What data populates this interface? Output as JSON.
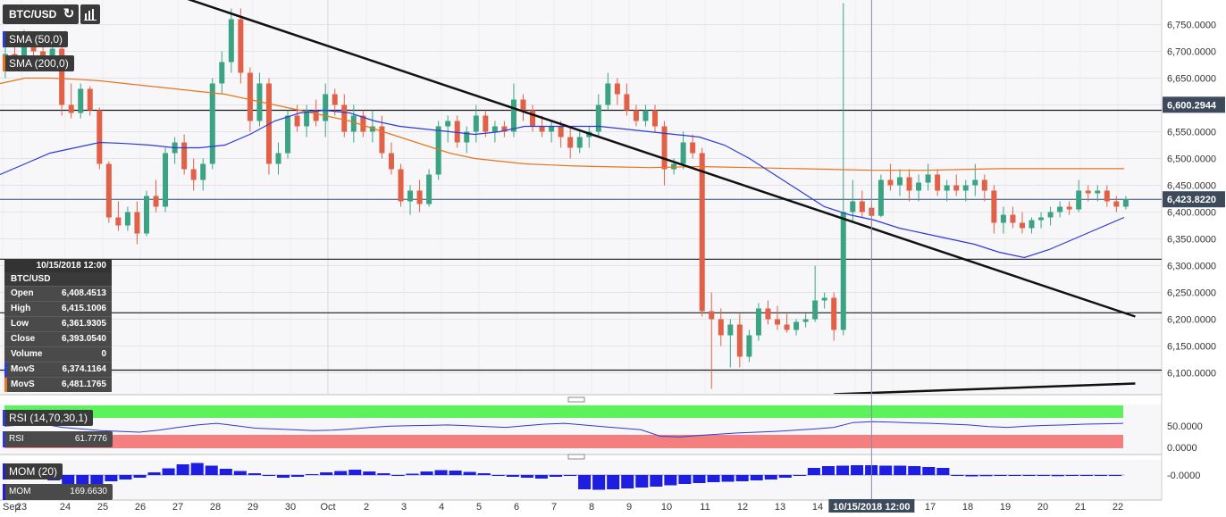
{
  "toolbar": {
    "symbol": "BTC/USD",
    "refresh_icon": "refresh-icon",
    "indicators_icon": "bar-chart-icon"
  },
  "overlays": {
    "sma50": {
      "label": "SMA (50,0)",
      "color": "#2b3bd6"
    },
    "sma200": {
      "label": "SMA (200,0)",
      "color": "#e8741e"
    }
  },
  "ohlc_panel": {
    "date": "10/15/2018 12:00",
    "symbol": "BTC/USD",
    "rows": [
      {
        "k": "Open",
        "v": "6,408.4513"
      },
      {
        "k": "High",
        "v": "6,415.1006"
      },
      {
        "k": "Low",
        "v": "6,361.9305"
      },
      {
        "k": "Close",
        "v": "6,393.0540"
      },
      {
        "k": "Volume",
        "v": "0"
      },
      {
        "k": "MovS",
        "v": "6,374.1164",
        "color": "#2b3bd6"
      },
      {
        "k": "MovS",
        "v": "6,481.1765",
        "color": "#e8741e"
      }
    ]
  },
  "rsi": {
    "label": "RSI (14,70,30,1)",
    "value_label": "RSI",
    "value": "61.7776",
    "ticks": [
      "50.0000",
      "0.0000"
    ],
    "colors": {
      "overbought": "#5cf25c",
      "oversold": "#f57f7f",
      "line": "#2b3bd6"
    }
  },
  "momentum": {
    "label": "MOM (20)",
    "value_label": "MOM",
    "value": "169.6630",
    "ticks": [
      "-0.0000"
    ],
    "color": "#1e1ee0"
  },
  "crosshair_label": "10/15/2018 12:00",
  "chart_data": {
    "type": "candlestick",
    "title": "BTC/USD",
    "ylim": [
      6060,
      6800
    ],
    "y_ticks": [
      "6,100.0000",
      "6,150.0000",
      "6,200.0000",
      "6,250.0000",
      "6,300.0000",
      "6,350.0000",
      "6,400.0000",
      "6,450.0000",
      "6,500.0000",
      "6,550.0000",
      "6,600.0000",
      "6,650.0000",
      "6,700.0000",
      "6,750.0000"
    ],
    "x_ticks": [
      "Sep",
      "23",
      "24",
      "25",
      "26",
      "27",
      "28",
      "29",
      "30",
      "Oct",
      "2",
      "3",
      "4",
      "5",
      "6",
      "7",
      "8",
      "9",
      "10",
      "11",
      "12",
      "13",
      "14",
      "15",
      "16",
      "17",
      "18",
      "19",
      "20",
      "21",
      "22"
    ],
    "price_labels": [
      {
        "value": 6600.2944,
        "text": "6,600.2944"
      },
      {
        "value": 6423.822,
        "text": "6,423.8220"
      }
    ],
    "horizontal_lines": [
      6590,
      6312,
      6212,
      6105
    ],
    "trendlines": [
      {
        "from": [
          "Sep 23 00:00",
          6900
        ],
        "to": [
          "Oct 22 12:00",
          6205
        ]
      },
      {
        "from": [
          "Oct 14 12:00",
          6060
        ],
        "to": [
          "Oct 22 12:00",
          6080
        ]
      }
    ],
    "candles": [
      {
        "d": "Sep 22 12:00",
        "o": 6680,
        "h": 6710,
        "l": 6650,
        "c": 6695
      },
      {
        "d": "Sep 22 18:00",
        "o": 6695,
        "h": 6725,
        "l": 6675,
        "c": 6690
      },
      {
        "d": "Sep 23 00:00",
        "o": 6690,
        "h": 6740,
        "l": 6670,
        "c": 6720
      },
      {
        "d": "Sep 23 06:00",
        "o": 6720,
        "h": 6735,
        "l": 6690,
        "c": 6700
      },
      {
        "d": "Sep 23 12:00",
        "o": 6700,
        "h": 6720,
        "l": 6680,
        "c": 6690
      },
      {
        "d": "Sep 23 18:00",
        "o": 6690,
        "h": 6720,
        "l": 6670,
        "c": 6705
      },
      {
        "d": "Sep 24 00:00",
        "o": 6705,
        "h": 6710,
        "l": 6580,
        "c": 6600
      },
      {
        "d": "Sep 24 06:00",
        "o": 6600,
        "h": 6640,
        "l": 6575,
        "c": 6585
      },
      {
        "d": "Sep 24 12:00",
        "o": 6585,
        "h": 6640,
        "l": 6575,
        "c": 6630
      },
      {
        "d": "Sep 24 18:00",
        "o": 6630,
        "h": 6635,
        "l": 6580,
        "c": 6590
      },
      {
        "d": "Sep 25 00:00",
        "o": 6590,
        "h": 6595,
        "l": 6480,
        "c": 6490
      },
      {
        "d": "Sep 25 06:00",
        "o": 6490,
        "h": 6495,
        "l": 6380,
        "c": 6390
      },
      {
        "d": "Sep 25 12:00",
        "o": 6390,
        "h": 6420,
        "l": 6365,
        "c": 6375
      },
      {
        "d": "Sep 25 18:00",
        "o": 6375,
        "h": 6410,
        "l": 6365,
        "c": 6400
      },
      {
        "d": "Sep 26 00:00",
        "o": 6400,
        "h": 6420,
        "l": 6340,
        "c": 6360
      },
      {
        "d": "Sep 26 06:00",
        "o": 6360,
        "h": 6440,
        "l": 6355,
        "c": 6430
      },
      {
        "d": "Sep 26 12:00",
        "o": 6430,
        "h": 6460,
        "l": 6400,
        "c": 6410
      },
      {
        "d": "Sep 26 18:00",
        "o": 6410,
        "h": 6520,
        "l": 6400,
        "c": 6510
      },
      {
        "d": "Sep 27 00:00",
        "o": 6510,
        "h": 6540,
        "l": 6490,
        "c": 6530
      },
      {
        "d": "Sep 27 06:00",
        "o": 6530,
        "h": 6545,
        "l": 6470,
        "c": 6480
      },
      {
        "d": "Sep 27 12:00",
        "o": 6480,
        "h": 6500,
        "l": 6440,
        "c": 6460
      },
      {
        "d": "Sep 27 18:00",
        "o": 6460,
        "h": 6500,
        "l": 6440,
        "c": 6490
      },
      {
        "d": "Sep 28 00:00",
        "o": 6490,
        "h": 6650,
        "l": 6480,
        "c": 6640
      },
      {
        "d": "Sep 28 06:00",
        "o": 6640,
        "h": 6700,
        "l": 6620,
        "c": 6680
      },
      {
        "d": "Sep 28 12:00",
        "o": 6680,
        "h": 6780,
        "l": 6660,
        "c": 6760
      },
      {
        "d": "Sep 28 18:00",
        "o": 6760,
        "h": 6780,
        "l": 6640,
        "c": 6660
      },
      {
        "d": "Sep 29 00:00",
        "o": 6660,
        "h": 6670,
        "l": 6550,
        "c": 6570
      },
      {
        "d": "Sep 29 06:00",
        "o": 6570,
        "h": 6660,
        "l": 6560,
        "c": 6640
      },
      {
        "d": "Sep 29 12:00",
        "o": 6640,
        "h": 6650,
        "l": 6470,
        "c": 6490
      },
      {
        "d": "Sep 29 18:00",
        "o": 6490,
        "h": 6530,
        "l": 6470,
        "c": 6510
      },
      {
        "d": "Sep 30 00:00",
        "o": 6510,
        "h": 6590,
        "l": 6500,
        "c": 6580
      },
      {
        "d": "Sep 30 06:00",
        "o": 6580,
        "h": 6600,
        "l": 6550,
        "c": 6560
      },
      {
        "d": "Sep 30 12:00",
        "o": 6560,
        "h": 6600,
        "l": 6540,
        "c": 6590
      },
      {
        "d": "Sep 30 18:00",
        "o": 6590,
        "h": 6610,
        "l": 6560,
        "c": 6570
      },
      {
        "d": "Oct 1 00:00",
        "o": 6570,
        "h": 6640,
        "l": 6540,
        "c": 6620
      },
      {
        "d": "Oct 1 06:00",
        "o": 6620,
        "h": 6630,
        "l": 6580,
        "c": 6600
      },
      {
        "d": "Oct 1 12:00",
        "o": 6600,
        "h": 6620,
        "l": 6540,
        "c": 6550
      },
      {
        "d": "Oct 1 18:00",
        "o": 6550,
        "h": 6600,
        "l": 6530,
        "c": 6580
      },
      {
        "d": "Oct 2 00:00",
        "o": 6580,
        "h": 6590,
        "l": 6540,
        "c": 6550
      },
      {
        "d": "Oct 2 06:00",
        "o": 6550,
        "h": 6590,
        "l": 6530,
        "c": 6560
      },
      {
        "d": "Oct 2 12:00",
        "o": 6560,
        "h": 6580,
        "l": 6500,
        "c": 6510
      },
      {
        "d": "Oct 2 18:00",
        "o": 6510,
        "h": 6530,
        "l": 6470,
        "c": 6480
      },
      {
        "d": "Oct 3 00:00",
        "o": 6480,
        "h": 6490,
        "l": 6410,
        "c": 6420
      },
      {
        "d": "Oct 3 06:00",
        "o": 6420,
        "h": 6450,
        "l": 6395,
        "c": 6440
      },
      {
        "d": "Oct 3 12:00",
        "o": 6440,
        "h": 6460,
        "l": 6400,
        "c": 6415
      },
      {
        "d": "Oct 3 18:00",
        "o": 6415,
        "h": 6480,
        "l": 6410,
        "c": 6470
      },
      {
        "d": "Oct 4 00:00",
        "o": 6470,
        "h": 6570,
        "l": 6460,
        "c": 6560
      },
      {
        "d": "Oct 4 06:00",
        "o": 6560,
        "h": 6580,
        "l": 6530,
        "c": 6570
      },
      {
        "d": "Oct 4 12:00",
        "o": 6570,
        "h": 6580,
        "l": 6520,
        "c": 6530
      },
      {
        "d": "Oct 4 18:00",
        "o": 6530,
        "h": 6560,
        "l": 6510,
        "c": 6550
      },
      {
        "d": "Oct 5 00:00",
        "o": 6550,
        "h": 6600,
        "l": 6530,
        "c": 6580
      },
      {
        "d": "Oct 5 06:00",
        "o": 6580,
        "h": 6590,
        "l": 6540,
        "c": 6550
      },
      {
        "d": "Oct 5 12:00",
        "o": 6550,
        "h": 6570,
        "l": 6530,
        "c": 6560
      },
      {
        "d": "Oct 5 18:00",
        "o": 6560,
        "h": 6570,
        "l": 6540,
        "c": 6550
      },
      {
        "d": "Oct 6 00:00",
        "o": 6550,
        "h": 6640,
        "l": 6540,
        "c": 6610
      },
      {
        "d": "Oct 6 06:00",
        "o": 6610,
        "h": 6620,
        "l": 6570,
        "c": 6590
      },
      {
        "d": "Oct 6 12:00",
        "o": 6590,
        "h": 6600,
        "l": 6550,
        "c": 6560
      },
      {
        "d": "Oct 6 18:00",
        "o": 6560,
        "h": 6580,
        "l": 6540,
        "c": 6550
      },
      {
        "d": "Oct 7 00:00",
        "o": 6550,
        "h": 6570,
        "l": 6530,
        "c": 6560
      },
      {
        "d": "Oct 7 06:00",
        "o": 6560,
        "h": 6570,
        "l": 6520,
        "c": 6540
      },
      {
        "d": "Oct 7 12:00",
        "o": 6540,
        "h": 6560,
        "l": 6500,
        "c": 6520
      },
      {
        "d": "Oct 7 18:00",
        "o": 6520,
        "h": 6550,
        "l": 6510,
        "c": 6540
      },
      {
        "d": "Oct 8 00:00",
        "o": 6540,
        "h": 6560,
        "l": 6520,
        "c": 6550
      },
      {
        "d": "Oct 8 06:00",
        "o": 6550,
        "h": 6620,
        "l": 6540,
        "c": 6600
      },
      {
        "d": "Oct 8 12:00",
        "o": 6600,
        "h": 6660,
        "l": 6590,
        "c": 6640
      },
      {
        "d": "Oct 8 18:00",
        "o": 6640,
        "h": 6650,
        "l": 6600,
        "c": 6620
      },
      {
        "d": "Oct 9 00:00",
        "o": 6620,
        "h": 6640,
        "l": 6580,
        "c": 6590
      },
      {
        "d": "Oct 9 06:00",
        "o": 6590,
        "h": 6600,
        "l": 6560,
        "c": 6570
      },
      {
        "d": "Oct 9 12:00",
        "o": 6570,
        "h": 6600,
        "l": 6560,
        "c": 6590
      },
      {
        "d": "Oct 9 18:00",
        "o": 6590,
        "h": 6600,
        "l": 6550,
        "c": 6560
      },
      {
        "d": "Oct 10 00:00",
        "o": 6560,
        "h": 6570,
        "l": 6450,
        "c": 6480
      },
      {
        "d": "Oct 10 06:00",
        "o": 6480,
        "h": 6500,
        "l": 6470,
        "c": 6490
      },
      {
        "d": "Oct 10 12:00",
        "o": 6490,
        "h": 6550,
        "l": 6480,
        "c": 6530
      },
      {
        "d": "Oct 10 18:00",
        "o": 6530,
        "h": 6545,
        "l": 6500,
        "c": 6510
      },
      {
        "d": "Oct 11 00:00",
        "o": 6510,
        "h": 6520,
        "l": 6205,
        "c": 6215
      },
      {
        "d": "Oct 11 06:00",
        "o": 6215,
        "h": 6250,
        "l": 6070,
        "c": 6200
      },
      {
        "d": "Oct 11 12:00",
        "o": 6200,
        "h": 6220,
        "l": 6150,
        "c": 6170
      },
      {
        "d": "Oct 11 18:00",
        "o": 6170,
        "h": 6200,
        "l": 6110,
        "c": 6190
      },
      {
        "d": "Oct 12 00:00",
        "o": 6190,
        "h": 6210,
        "l": 6110,
        "c": 6130
      },
      {
        "d": "Oct 12 06:00",
        "o": 6130,
        "h": 6180,
        "l": 6120,
        "c": 6170
      },
      {
        "d": "Oct 12 12:00",
        "o": 6170,
        "h": 6230,
        "l": 6160,
        "c": 6220
      },
      {
        "d": "Oct 12 18:00",
        "o": 6220,
        "h": 6235,
        "l": 6190,
        "c": 6200
      },
      {
        "d": "Oct 13 00:00",
        "o": 6200,
        "h": 6225,
        "l": 6180,
        "c": 6190
      },
      {
        "d": "Oct 13 06:00",
        "o": 6190,
        "h": 6210,
        "l": 6175,
        "c": 6180
      },
      {
        "d": "Oct 13 12:00",
        "o": 6180,
        "h": 6200,
        "l": 6170,
        "c": 6195
      },
      {
        "d": "Oct 13 18:00",
        "o": 6195,
        "h": 6210,
        "l": 6185,
        "c": 6200
      },
      {
        "d": "Oct 14 00:00",
        "o": 6200,
        "h": 6300,
        "l": 6195,
        "c": 6235
      },
      {
        "d": "Oct 14 06:00",
        "o": 6235,
        "h": 6250,
        "l": 6220,
        "c": 6240
      },
      {
        "d": "Oct 14 12:00",
        "o": 6240,
        "h": 6250,
        "l": 6160,
        "c": 6180
      },
      {
        "d": "Oct 14 18:00",
        "o": 6180,
        "h": 6790,
        "l": 6170,
        "c": 6400
      },
      {
        "d": "Oct 15 00:00",
        "o": 6400,
        "h": 6460,
        "l": 6380,
        "c": 6420
      },
      {
        "d": "Oct 15 06:00",
        "o": 6420,
        "h": 6440,
        "l": 6390,
        "c": 6400
      },
      {
        "d": "Oct 15 12:00",
        "o": 6408,
        "h": 6415,
        "l": 6362,
        "c": 6393
      },
      {
        "d": "Oct 15 18:00",
        "o": 6393,
        "h": 6470,
        "l": 6390,
        "c": 6460
      },
      {
        "d": "Oct 16 00:00",
        "o": 6460,
        "h": 6490,
        "l": 6440,
        "c": 6450
      },
      {
        "d": "Oct 16 06:00",
        "o": 6450,
        "h": 6480,
        "l": 6430,
        "c": 6465
      },
      {
        "d": "Oct 16 12:00",
        "o": 6465,
        "h": 6480,
        "l": 6420,
        "c": 6440
      },
      {
        "d": "Oct 16 18:00",
        "o": 6440,
        "h": 6470,
        "l": 6420,
        "c": 6455
      },
      {
        "d": "Oct 17 00:00",
        "o": 6455,
        "h": 6490,
        "l": 6440,
        "c": 6470
      },
      {
        "d": "Oct 17 06:00",
        "o": 6470,
        "h": 6480,
        "l": 6430,
        "c": 6440
      },
      {
        "d": "Oct 17 12:00",
        "o": 6440,
        "h": 6460,
        "l": 6420,
        "c": 6450
      },
      {
        "d": "Oct 17 18:00",
        "o": 6450,
        "h": 6470,
        "l": 6430,
        "c": 6440
      },
      {
        "d": "Oct 18 00:00",
        "o": 6440,
        "h": 6460,
        "l": 6420,
        "c": 6450
      },
      {
        "d": "Oct 18 06:00",
        "o": 6450,
        "h": 6490,
        "l": 6430,
        "c": 6460
      },
      {
        "d": "Oct 18 12:00",
        "o": 6460,
        "h": 6470,
        "l": 6420,
        "c": 6440
      },
      {
        "d": "Oct 18 18:00",
        "o": 6440,
        "h": 6450,
        "l": 6360,
        "c": 6380
      },
      {
        "d": "Oct 19 00:00",
        "o": 6380,
        "h": 6410,
        "l": 6360,
        "c": 6395
      },
      {
        "d": "Oct 19 06:00",
        "o": 6395,
        "h": 6410,
        "l": 6370,
        "c": 6380
      },
      {
        "d": "Oct 19 12:00",
        "o": 6380,
        "h": 6400,
        "l": 6360,
        "c": 6370
      },
      {
        "d": "Oct 19 18:00",
        "o": 6370,
        "h": 6390,
        "l": 6360,
        "c": 6385
      },
      {
        "d": "Oct 20 00:00",
        "o": 6385,
        "h": 6400,
        "l": 6370,
        "c": 6390
      },
      {
        "d": "Oct 20 06:00",
        "o": 6390,
        "h": 6410,
        "l": 6375,
        "c": 6400
      },
      {
        "d": "Oct 20 12:00",
        "o": 6400,
        "h": 6420,
        "l": 6390,
        "c": 6410
      },
      {
        "d": "Oct 20 18:00",
        "o": 6410,
        "h": 6420,
        "l": 6395,
        "c": 6405
      },
      {
        "d": "Oct 21 00:00",
        "o": 6405,
        "h": 6460,
        "l": 6400,
        "c": 6440
      },
      {
        "d": "Oct 21 06:00",
        "o": 6440,
        "h": 6450,
        "l": 6420,
        "c": 6435
      },
      {
        "d": "Oct 21 12:00",
        "o": 6435,
        "h": 6450,
        "l": 6420,
        "c": 6440
      },
      {
        "d": "Oct 21 18:00",
        "o": 6440,
        "h": 6450,
        "l": 6410,
        "c": 6420
      },
      {
        "d": "Oct 22 00:00",
        "o": 6420,
        "h": 6430,
        "l": 6400,
        "c": 6410
      },
      {
        "d": "Oct 22 06:00",
        "o": 6410,
        "h": 6430,
        "l": 6405,
        "c": 6424
      }
    ],
    "sma50": [
      6470,
      6490,
      6510,
      6520,
      6530,
      6528,
      6525,
      6520,
      6520,
      6525,
      6545,
      6570,
      6585,
      6590,
      6585,
      6570,
      6560,
      6555,
      6550,
      6545,
      6550,
      6560,
      6560,
      6560,
      6560,
      6555,
      6550,
      6545,
      6540,
      6525,
      6500,
      6470,
      6440,
      6410,
      6395,
      6385,
      6370,
      6360,
      6350,
      6340,
      6325,
      6315,
      6330,
      6350,
      6370,
      6390
    ],
    "sma200": [
      6640,
      6650,
      6650,
      6648,
      6645,
      6640,
      6635,
      6630,
      6625,
      6620,
      6610,
      6600,
      6590,
      6580,
      6570,
      6555,
      6540,
      6525,
      6510,
      6500,
      6495,
      6490,
      6488,
      6486,
      6485,
      6484,
      6483,
      6484,
      6485,
      6484,
      6483,
      6482,
      6481,
      6480,
      6479,
      6478,
      6478,
      6478,
      6479,
      6480,
      6481,
      6481,
      6481,
      6481,
      6481,
      6481
    ],
    "rsi_values": [
      55,
      58,
      60,
      52,
      48,
      44,
      42,
      40,
      45,
      52,
      58,
      62,
      56,
      50,
      48,
      46,
      44,
      45,
      48,
      52,
      55,
      56,
      57,
      58,
      56,
      54,
      52,
      56,
      60,
      62,
      58,
      54,
      50,
      46,
      30,
      28,
      32,
      35,
      38,
      40,
      42,
      45,
      48,
      52,
      64,
      66,
      65,
      63,
      62,
      60,
      58,
      54,
      52,
      55,
      57,
      58,
      60,
      61,
      62
    ],
    "momentum_values": [
      260,
      180,
      60,
      -120,
      -220,
      -260,
      -200,
      -140,
      -100,
      -60,
      60,
      150,
      240,
      270,
      210,
      140,
      90,
      40,
      -20,
      -60,
      -40,
      20,
      60,
      90,
      120,
      80,
      40,
      -20,
      30,
      80,
      110,
      100,
      70,
      40,
      -20,
      -40,
      -60,
      -80,
      -40,
      -20,
      -320,
      -330,
      -320,
      -300,
      -280,
      -260,
      -230,
      -200,
      -180,
      -160,
      -150,
      -140,
      -120,
      -100,
      -60,
      -20,
      160,
      200,
      210,
      220,
      220,
      210,
      210,
      200,
      180,
      160,
      -20,
      -30,
      -25,
      -20,
      -15,
      -15,
      -20,
      -25,
      -20,
      -20,
      -15,
      -10
    ]
  }
}
